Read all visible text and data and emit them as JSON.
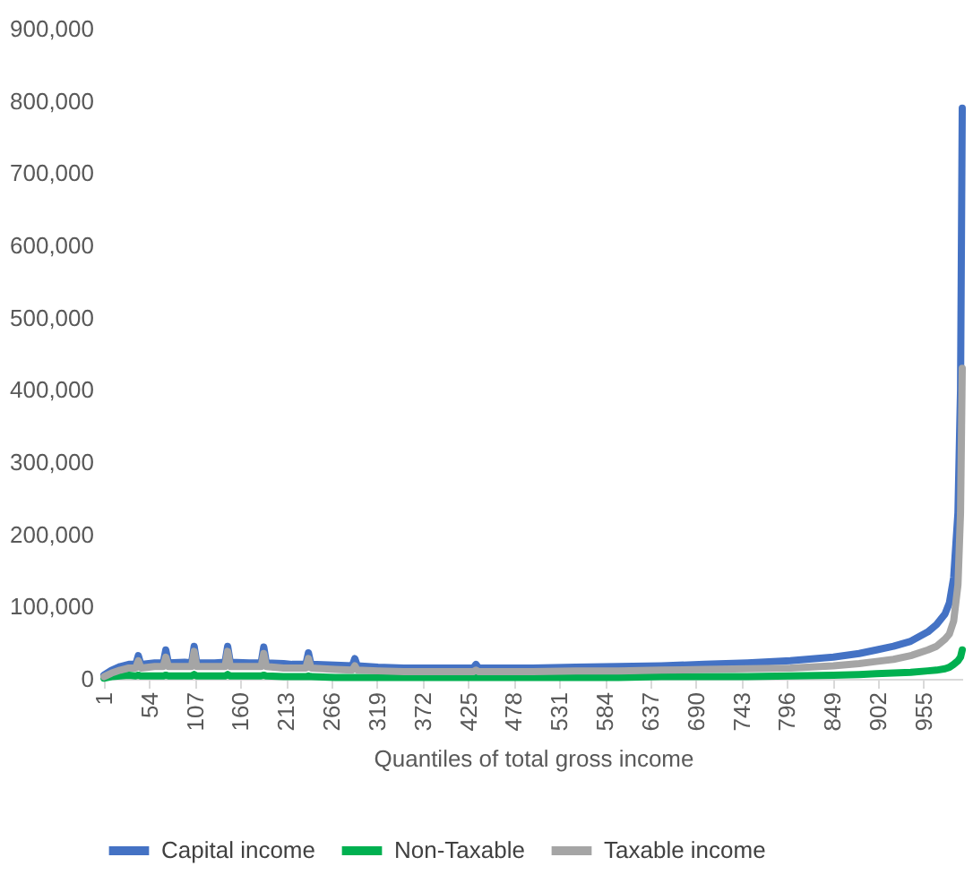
{
  "chart_data": {
    "type": "line",
    "xlabel": "Quantiles of total gross income",
    "x": [
      1,
      10,
      20,
      30,
      38,
      41,
      44,
      60,
      70,
      73,
      76,
      95,
      103,
      106,
      109,
      130,
      142,
      145,
      148,
      170,
      184,
      187,
      190,
      210,
      220,
      236,
      239,
      242,
      270,
      290,
      293,
      296,
      320,
      350,
      400,
      431,
      434,
      437,
      500,
      550,
      600,
      650,
      700,
      750,
      800,
      850,
      880,
      900,
      920,
      940,
      960,
      970,
      980,
      985,
      990,
      995,
      998,
      1000
    ],
    "series": [
      {
        "name": "Capital income",
        "color": "#4472c4",
        "values": [
          5000,
          12000,
          17000,
          20000,
          20000,
          32000,
          20000,
          22000,
          22000,
          40000,
          22000,
          23000,
          22000,
          45000,
          22000,
          22000,
          23000,
          45000,
          23000,
          22000,
          22000,
          44000,
          22000,
          21000,
          20000,
          20000,
          36000,
          20000,
          19000,
          18000,
          28000,
          18000,
          16000,
          15000,
          15000,
          15000,
          20000,
          15000,
          15000,
          16000,
          17000,
          18000,
          20000,
          22000,
          25000,
          30000,
          35000,
          40000,
          45000,
          52000,
          65000,
          75000,
          90000,
          105000,
          140000,
          230000,
          400000,
          790000
        ]
      },
      {
        "name": "Non-Taxable",
        "color": "#00b050",
        "values": [
          1000,
          3000,
          4000,
          5000,
          4000,
          5000,
          4000,
          4000,
          4000,
          5000,
          4000,
          4000,
          4000,
          6000,
          4000,
          4000,
          4000,
          6000,
          4000,
          4000,
          4000,
          5000,
          4000,
          3000,
          3000,
          3000,
          4000,
          3000,
          2000,
          2000,
          2000,
          2000,
          2000,
          2000,
          2000,
          2000,
          2000,
          2000,
          2000,
          2000,
          2000,
          3000,
          3000,
          3000,
          4000,
          5000,
          6000,
          7000,
          8000,
          9000,
          11000,
          12000,
          14000,
          16000,
          20000,
          25000,
          30000,
          40000
        ]
      },
      {
        "name": "Taxable income",
        "color": "#a5a5a5",
        "values": [
          3000,
          8000,
          12000,
          15000,
          15000,
          25000,
          15000,
          17000,
          17000,
          30000,
          17000,
          17000,
          17000,
          38000,
          17000,
          17000,
          17000,
          38000,
          17000,
          17000,
          17000,
          35000,
          17000,
          15000,
          15000,
          15000,
          28000,
          15000,
          13000,
          12000,
          18000,
          12000,
          11000,
          10000,
          10000,
          10000,
          12000,
          10000,
          10000,
          11000,
          11000,
          12000,
          13000,
          14000,
          15000,
          18000,
          21000,
          24000,
          27000,
          32000,
          40000,
          45000,
          55000,
          62000,
          80000,
          130000,
          230000,
          430000
        ]
      }
    ],
    "xlim": [
      1,
      1000
    ],
    "xticks": [
      1,
      54,
      107,
      160,
      213,
      266,
      319,
      372,
      425,
      478,
      531,
      584,
      637,
      690,
      743,
      796,
      849,
      902,
      955
    ],
    "ylim": [
      0,
      900000
    ],
    "yticks": [
      {
        "value": 0,
        "label": "0"
      },
      {
        "value": 100000,
        "label": "100,000"
      },
      {
        "value": 200000,
        "label": "200,000"
      },
      {
        "value": 300000,
        "label": "300,000"
      },
      {
        "value": 400000,
        "label": "400,000"
      },
      {
        "value": 500000,
        "label": "500,000"
      },
      {
        "value": 600000,
        "label": "600,000"
      },
      {
        "value": 700000,
        "label": "700,000"
      },
      {
        "value": 800000,
        "label": "800,000"
      },
      {
        "value": 900000,
        "label": "900,000"
      }
    ],
    "grid": false,
    "legend": "bottom"
  }
}
